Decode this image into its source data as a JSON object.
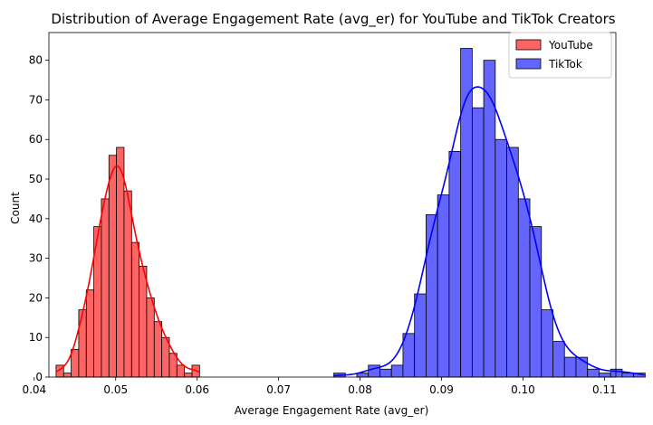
{
  "chart_data": {
    "type": "bar",
    "title": "Distribution of Average Engagement Rate (avg_er) for YouTube and TikTok Creators",
    "xlabel": "Average Engagement Rate (avg_er)",
    "ylabel": "Count",
    "xlim": [
      0.0418,
      0.1114
    ],
    "ylim": [
      0,
      87
    ],
    "xticks": [
      "0.04",
      "0.05",
      "0.06",
      "0.07",
      "0.08",
      "0.09",
      "0.10",
      "0.11"
    ],
    "yticks": [
      "0",
      "10",
      "20",
      "30",
      "40",
      "50",
      "60",
      "70",
      "80"
    ],
    "legend_position": "top-right",
    "series": [
      {
        "name": "YouTube",
        "color": "#ff0000",
        "fill": "#ff6464",
        "bin_width": 0.000927,
        "bin_start": 0.04268,
        "counts": [
          3,
          1,
          7,
          17,
          22,
          38,
          45,
          56,
          58,
          47,
          34,
          28,
          20,
          14,
          10,
          6,
          3,
          1,
          3
        ]
      },
      {
        "name": "TikTok",
        "color": "#0000ff",
        "fill": "#6464ff",
        "bin_width": 0.001416,
        "bin_start": 0.07677,
        "counts": [
          1,
          0,
          1,
          3,
          2,
          3,
          11,
          21,
          41,
          46,
          57,
          83,
          68,
          80,
          60,
          58,
          45,
          38,
          17,
          9,
          5,
          5,
          2,
          1,
          2,
          1,
          1
        ]
      }
    ]
  }
}
